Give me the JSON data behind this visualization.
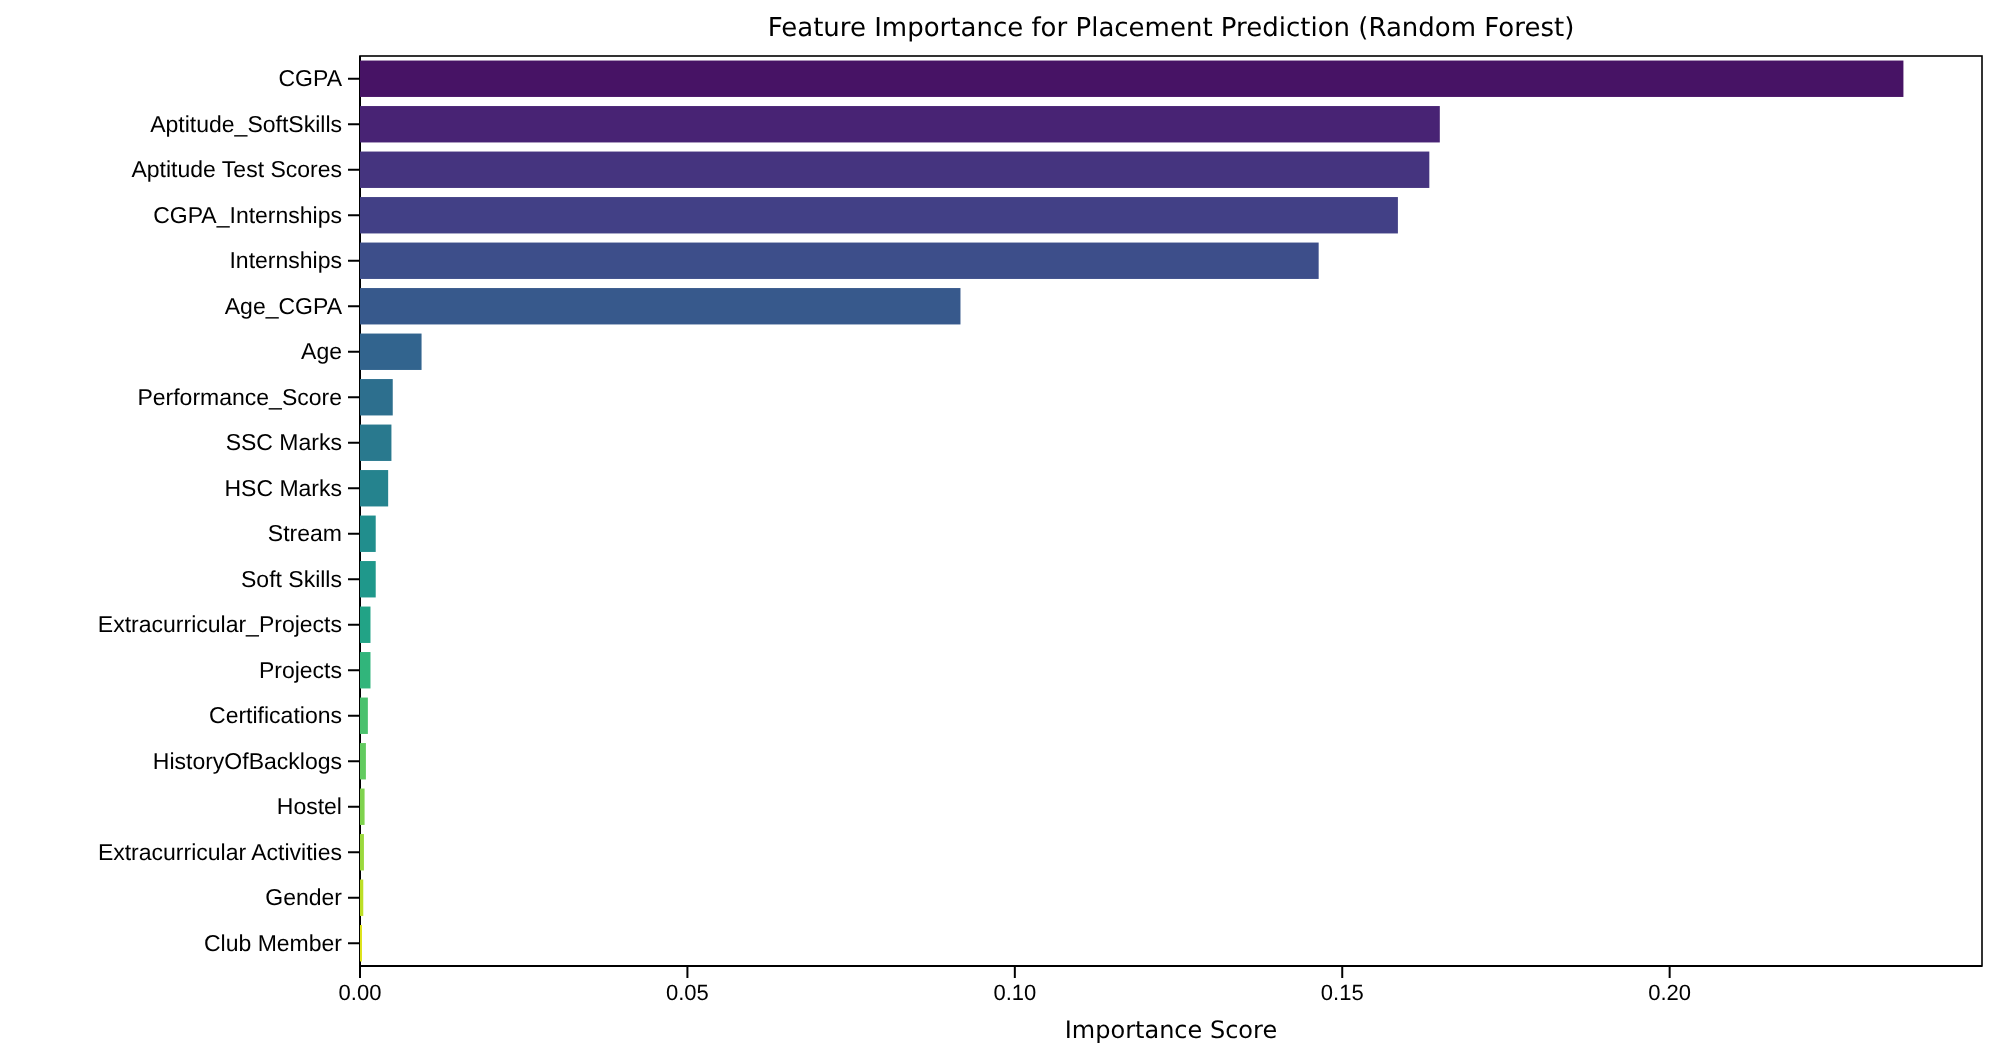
{
  "chart_data": {
    "type": "bar",
    "orientation": "horizontal",
    "title": "Feature Importance for Placement Prediction (Random Forest)",
    "xlabel": "Importance Score",
    "categories": [
      "CGPA",
      "Aptitude_SoftSkills",
      "Aptitude Test Scores",
      "CGPA_Internships",
      "Internships",
      "Age_CGPA",
      "Age",
      "Performance_Score",
      "SSC Marks",
      "HSC Marks",
      "Stream",
      "Soft Skills",
      "Extracurricular_Projects",
      "Projects",
      "Certifications",
      "HistoryOfBacklogs",
      "Hostel",
      "Extracurricular Activities",
      "Gender",
      "Club Member"
    ],
    "values": [
      0.2357,
      0.1649,
      0.1633,
      0.1585,
      0.1464,
      0.0917,
      0.0094,
      0.005,
      0.0048,
      0.0043,
      0.0024,
      0.0024,
      0.0016,
      0.0016,
      0.0012,
      0.0009,
      0.0007,
      0.0006,
      0.0005,
      0.0003
    ],
    "colors": [
      "#471365",
      "#482374",
      "#45347f",
      "#424086",
      "#3d4e8a",
      "#37598c",
      "#32648e",
      "#2d6f8e",
      "#29798e",
      "#25838e",
      "#218e8d",
      "#1f988b",
      "#22a386",
      "#31b57b",
      "#4ac16d",
      "#62cb5f",
      "#7fd34e",
      "#9bd93c",
      "#bddf26",
      "#dde318"
    ],
    "xlim": [
      0,
      0.2477
    ],
    "xticks": [
      {
        "value": 0,
        "label": "0.00"
      },
      {
        "value": 0.05,
        "label": "0.05"
      },
      {
        "value": 0.1,
        "label": "0.10"
      },
      {
        "value": 0.15,
        "label": "0.15"
      },
      {
        "value": 0.2,
        "label": "0.20"
      }
    ],
    "grid": false
  }
}
